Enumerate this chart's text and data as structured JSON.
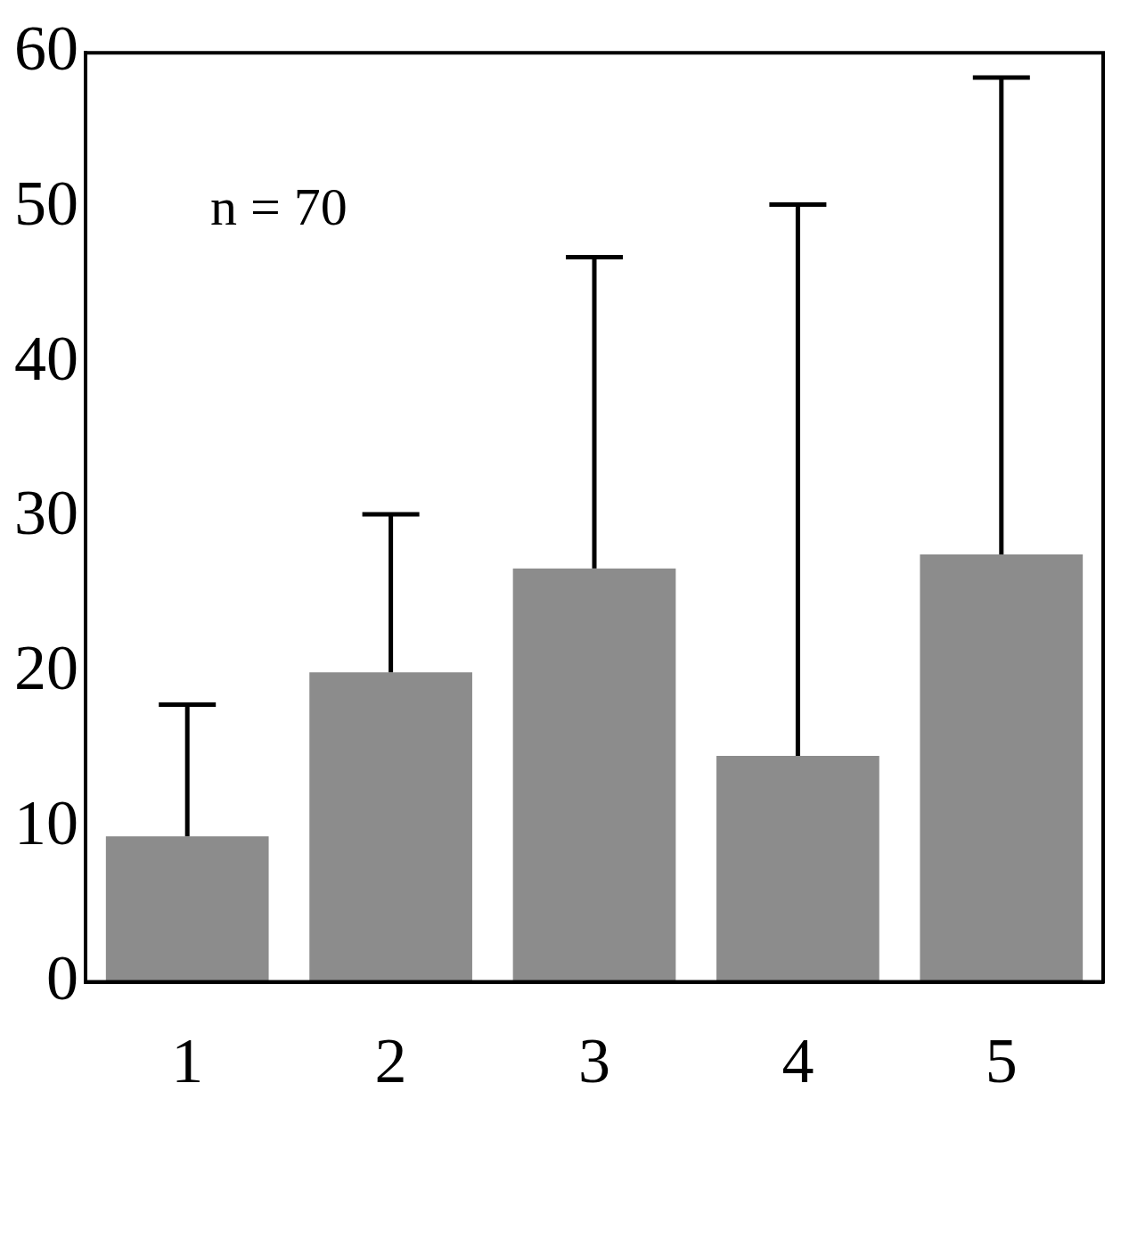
{
  "chart_data": {
    "type": "bar",
    "categories": [
      "1",
      "2",
      "3",
      "4",
      "5"
    ],
    "values": [
      9.4,
      20.0,
      26.7,
      14.6,
      27.6
    ],
    "errors": [
      [
        9.4,
        17.9
      ],
      [
        20.0,
        30.2
      ],
      [
        26.7,
        46.8
      ],
      [
        14.6,
        50.2
      ],
      [
        27.6,
        58.4
      ]
    ],
    "color": "#8c8c8c",
    "ylim": [
      0,
      60
    ],
    "yticks": [
      0,
      10,
      20,
      30,
      40,
      50,
      60
    ],
    "grid": false,
    "annotations": [
      "n = 70"
    ]
  }
}
